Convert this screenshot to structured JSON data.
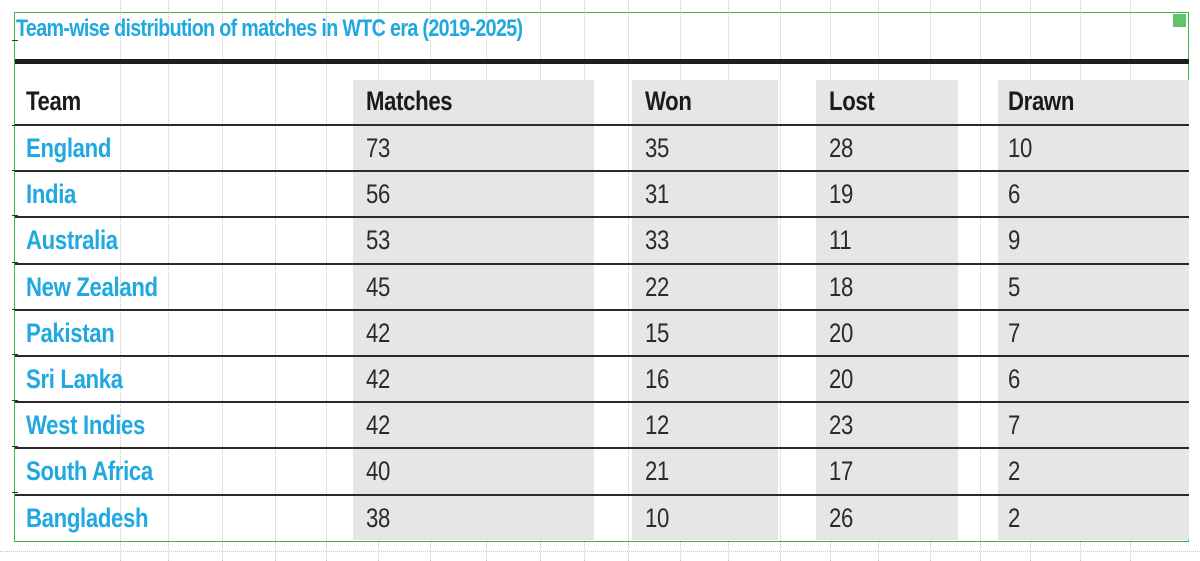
{
  "chart_data": {
    "type": "table",
    "title": "Team-wise distribution of matches in WTC era (2019-2025)",
    "columns": [
      "Team",
      "Matches",
      "Won",
      "Lost",
      "Drawn"
    ],
    "rows": [
      {
        "team": "England",
        "matches": "73",
        "won": "35",
        "lost": "28",
        "drawn": "10"
      },
      {
        "team": "India",
        "matches": "56",
        "won": "31",
        "lost": "19",
        "drawn": "6"
      },
      {
        "team": "Australia",
        "matches": "53",
        "won": "33",
        "lost": "11",
        "drawn": "9"
      },
      {
        "team": "New Zealand",
        "matches": "45",
        "won": "22",
        "lost": "18",
        "drawn": "5"
      },
      {
        "team": "Pakistan",
        "matches": "42",
        "won": "15",
        "lost": "20",
        "drawn": "7"
      },
      {
        "team": "Sri Lanka",
        "matches": "42",
        "won": "16",
        "lost": "20",
        "drawn": "6"
      },
      {
        "team": "West Indies",
        "matches": "42",
        "won": "12",
        "lost": "23",
        "drawn": "7"
      },
      {
        "team": "South Africa",
        "matches": "40",
        "won": "21",
        "lost": "17",
        "drawn": "2"
      },
      {
        "team": "Bangladesh",
        "matches": "38",
        "won": "10",
        "lost": "26",
        "drawn": "2"
      }
    ]
  },
  "colors": {
    "title": "#1fa9e0",
    "team_names": "#1fa9e0",
    "shaded_columns": "#e6e6e8",
    "frame": "#3cb84a"
  }
}
